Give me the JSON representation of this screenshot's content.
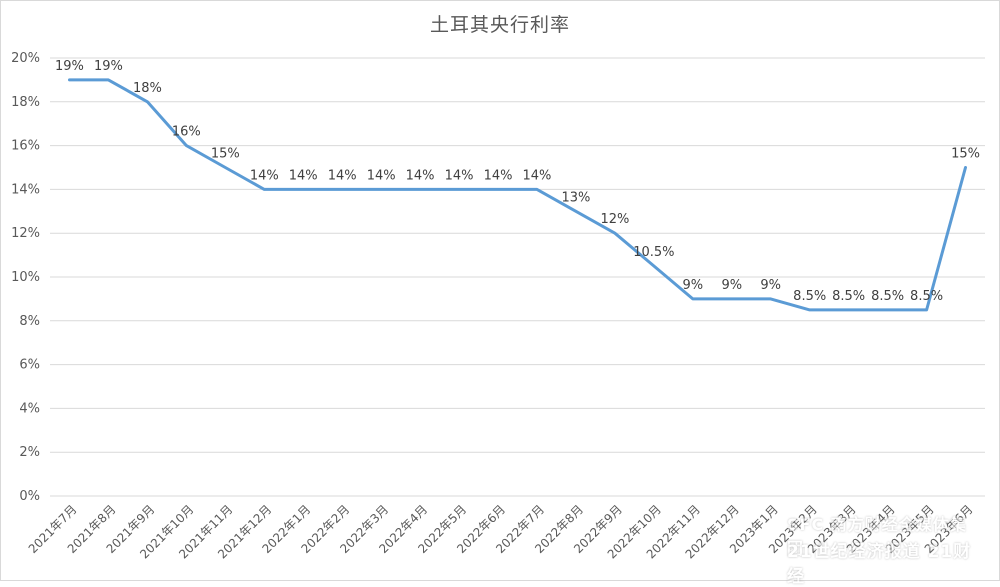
{
  "chart_data": {
    "type": "line",
    "title": "土耳其央行利率",
    "xlabel": "",
    "ylabel": "",
    "ylim": [
      0,
      20
    ],
    "yticks": [
      "0%",
      "2%",
      "4%",
      "6%",
      "8%",
      "10%",
      "12%",
      "14%",
      "16%",
      "18%",
      "20%"
    ],
    "grid": true,
    "categories": [
      "2021年7月",
      "2021年8月",
      "2021年9月",
      "2021年10月",
      "2021年11月",
      "2021年12月",
      "2022年1月",
      "2022年2月",
      "2022年3月",
      "2022年4月",
      "2022年5月",
      "2022年6月",
      "2022年7月",
      "2022年8月",
      "2022年9月",
      "2022年10月",
      "2022年11月",
      "2022年12月",
      "2023年1月",
      "2023年2月",
      "2023年3月",
      "2023年4月",
      "2023年5月",
      "2023年6月"
    ],
    "values": [
      19,
      19,
      18,
      16,
      15,
      14,
      14,
      14,
      14,
      14,
      14,
      14,
      14,
      13,
      12,
      10.5,
      9,
      9,
      9,
      8.5,
      8.5,
      8.5,
      8.5,
      15
    ],
    "data_labels": [
      "19%",
      "19%",
      "18%",
      "16%",
      "15%",
      "14%",
      "14%",
      "14%",
      "14%",
      "14%",
      "14%",
      "14%",
      "14%",
      "13%",
      "12%",
      "10.5%",
      "9%",
      "9%",
      "9%",
      "8.5%",
      "8.5%",
      "8.5%",
      "8.5%",
      "15%"
    ],
    "line_color": "#5b9bd5"
  },
  "watermark": {
    "line1": "SFC 南方财经全媒体集团",
    "line2": "21世纪经济报道 21财经"
  }
}
